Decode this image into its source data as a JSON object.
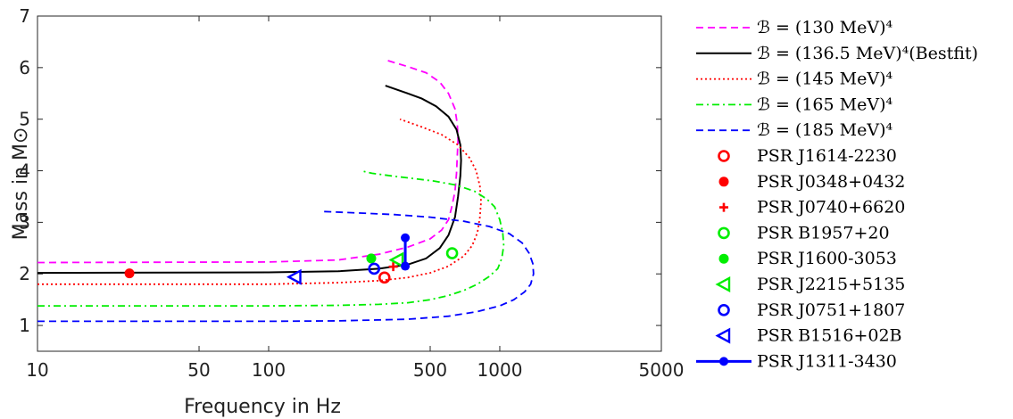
{
  "chart_data": {
    "type": "line",
    "xlabel": "Frequency in Hz",
    "ylabel": "Mass in M⊙",
    "xscale": "log",
    "xlim": [
      10,
      5000
    ],
    "ylim": [
      0.5,
      7
    ],
    "xticks": [
      10,
      50,
      100,
      500,
      1000,
      5000
    ],
    "yticks": [
      1,
      2,
      3,
      4,
      5,
      6,
      7
    ],
    "grid": false,
    "legend_position": "outside-right",
    "series": [
      {
        "name": "ℬ = (130 MeV)⁴",
        "color": "#ff00ff",
        "style": "dashed",
        "x": [
          10,
          100,
          200,
          300,
          400,
          500,
          560,
          600,
          620,
          640,
          650,
          655,
          660,
          655,
          640,
          600,
          550,
          480,
          400,
          320
        ],
        "y": [
          2.22,
          2.23,
          2.27,
          2.38,
          2.52,
          2.68,
          2.85,
          3.05,
          3.3,
          3.6,
          3.95,
          4.3,
          4.6,
          4.9,
          5.2,
          5.5,
          5.72,
          5.9,
          6.02,
          6.15
        ]
      },
      {
        "name": "ℬ = (136.5 MeV)⁴(Bestfit)",
        "color": "#000000",
        "style": "solid",
        "x": [
          10,
          100,
          200,
          300,
          400,
          480,
          550,
          600,
          640,
          660,
          675,
          680,
          675,
          650,
          600,
          530,
          460,
          400,
          320
        ],
        "y": [
          2.02,
          2.03,
          2.05,
          2.1,
          2.18,
          2.3,
          2.5,
          2.75,
          3.1,
          3.5,
          3.9,
          4.2,
          4.5,
          4.8,
          5.05,
          5.25,
          5.4,
          5.5,
          5.65
        ]
      },
      {
        "name": "ℬ = (145 MeV)⁴",
        "color": "#ff0000",
        "style": "dotted",
        "x": [
          10,
          100,
          200,
          300,
          400,
          500,
          600,
          700,
          760,
          800,
          820,
          830,
          820,
          790,
          740,
          660,
          560,
          460,
          370
        ],
        "y": [
          1.8,
          1.8,
          1.83,
          1.87,
          1.93,
          2.02,
          2.15,
          2.35,
          2.55,
          2.8,
          3.1,
          3.4,
          3.7,
          4.0,
          4.25,
          4.5,
          4.7,
          4.85,
          5.0
        ]
      },
      {
        "name": "ℬ = (165 MeV)⁴",
        "color": "#00ee00",
        "style": "dashdot",
        "x": [
          10,
          100,
          200,
          300,
          400,
          500,
          600,
          700,
          800,
          900,
          980,
          1020,
          1040,
          1030,
          1000,
          950,
          880,
          780,
          650,
          520,
          420,
          340,
          280,
          250
        ],
        "y": [
          1.38,
          1.38,
          1.39,
          1.41,
          1.44,
          1.5,
          1.58,
          1.68,
          1.8,
          1.95,
          2.1,
          2.3,
          2.55,
          2.8,
          3.05,
          3.3,
          3.45,
          3.6,
          3.72,
          3.8,
          3.85,
          3.9,
          3.95,
          4.0
        ]
      },
      {
        "name": "ℬ = (185 MeV)⁴",
        "color": "#0000ff",
        "style": "dashed",
        "x": [
          10,
          100,
          200,
          400,
          600,
          800,
          1000,
          1150,
          1280,
          1360,
          1400,
          1390,
          1340,
          1250,
          1100,
          900,
          700,
          500,
          350,
          250,
          170
        ],
        "y": [
          1.08,
          1.08,
          1.09,
          1.12,
          1.18,
          1.27,
          1.38,
          1.5,
          1.65,
          1.8,
          2.0,
          2.2,
          2.4,
          2.6,
          2.78,
          2.92,
          3.02,
          3.1,
          3.15,
          3.18,
          3.21
        ]
      }
    ],
    "points": [
      {
        "name": "PSR J1614-2230",
        "marker": "open-circle",
        "color": "#ff0000",
        "x": 317,
        "y": 1.93
      },
      {
        "name": "PSR J0348+0432",
        "marker": "filled-circle",
        "color": "#ff0000",
        "x": 25,
        "y": 2.01
      },
      {
        "name": "PSR J0740+6620",
        "marker": "plus",
        "color": "#ff0000",
        "x": 346,
        "y": 2.14
      },
      {
        "name": "PSR B1957+20",
        "marker": "open-circle",
        "color": "#00ee00",
        "x": 622,
        "y": 2.4
      },
      {
        "name": "PSR J1600-3053",
        "marker": "filled-circle",
        "color": "#00ee00",
        "x": 278,
        "y": 2.3
      },
      {
        "name": "PSR J2215+5135",
        "marker": "left-triangle",
        "color": "#00ee00",
        "x": 360,
        "y": 2.27
      },
      {
        "name": "PSR J0751+1807",
        "marker": "open-circle",
        "color": "#0000ff",
        "x": 286,
        "y": 2.1
      },
      {
        "name": "PSR B1516+02B",
        "marker": "left-triangle",
        "color": "#0000ff",
        "x": 130,
        "y": 1.94
      },
      {
        "name": "PSR J1311-3430",
        "marker": "errorbar",
        "color": "#0000ff",
        "x": 390,
        "y_low": 2.15,
        "y_high": 2.7
      }
    ]
  }
}
